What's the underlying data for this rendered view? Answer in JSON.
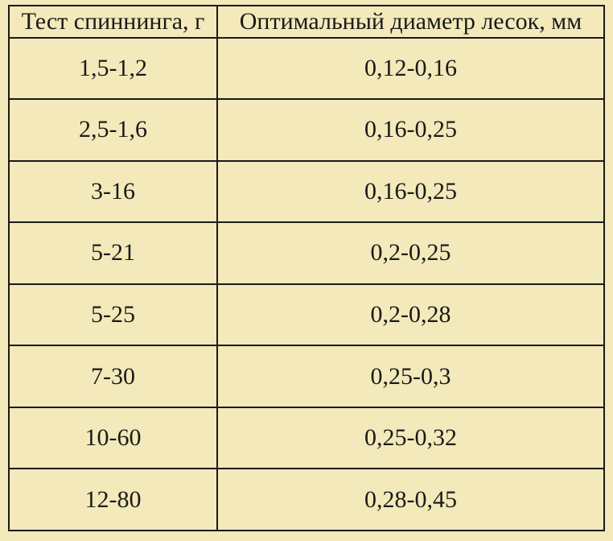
{
  "table": {
    "type": "table",
    "background_color": "#f3e9ba",
    "border_color": "#1a1a1a",
    "text_color": "#1a1a1a",
    "font_family": "Georgia, Times New Roman, serif",
    "header_fontsize": 30,
    "cell_fontsize": 30,
    "border_width": 2,
    "column_widths_pct": [
      35,
      65
    ],
    "columns": [
      "Тест спиннинга, г",
      "Оптимальный диаметр лесок, мм"
    ],
    "rows": [
      [
        "1,5-1,2",
        "0,12-0,16"
      ],
      [
        "2,5-1,6",
        "0,16-0,25"
      ],
      [
        "3-16",
        "0,16-0,25"
      ],
      [
        "5-21",
        "0,2-0,25"
      ],
      [
        "5-25",
        "0,2-0,28"
      ],
      [
        "7-30",
        "0,25-0,3"
      ],
      [
        "10-60",
        "0,25-0,32"
      ],
      [
        "12-80",
        "0,28-0,45"
      ]
    ]
  }
}
